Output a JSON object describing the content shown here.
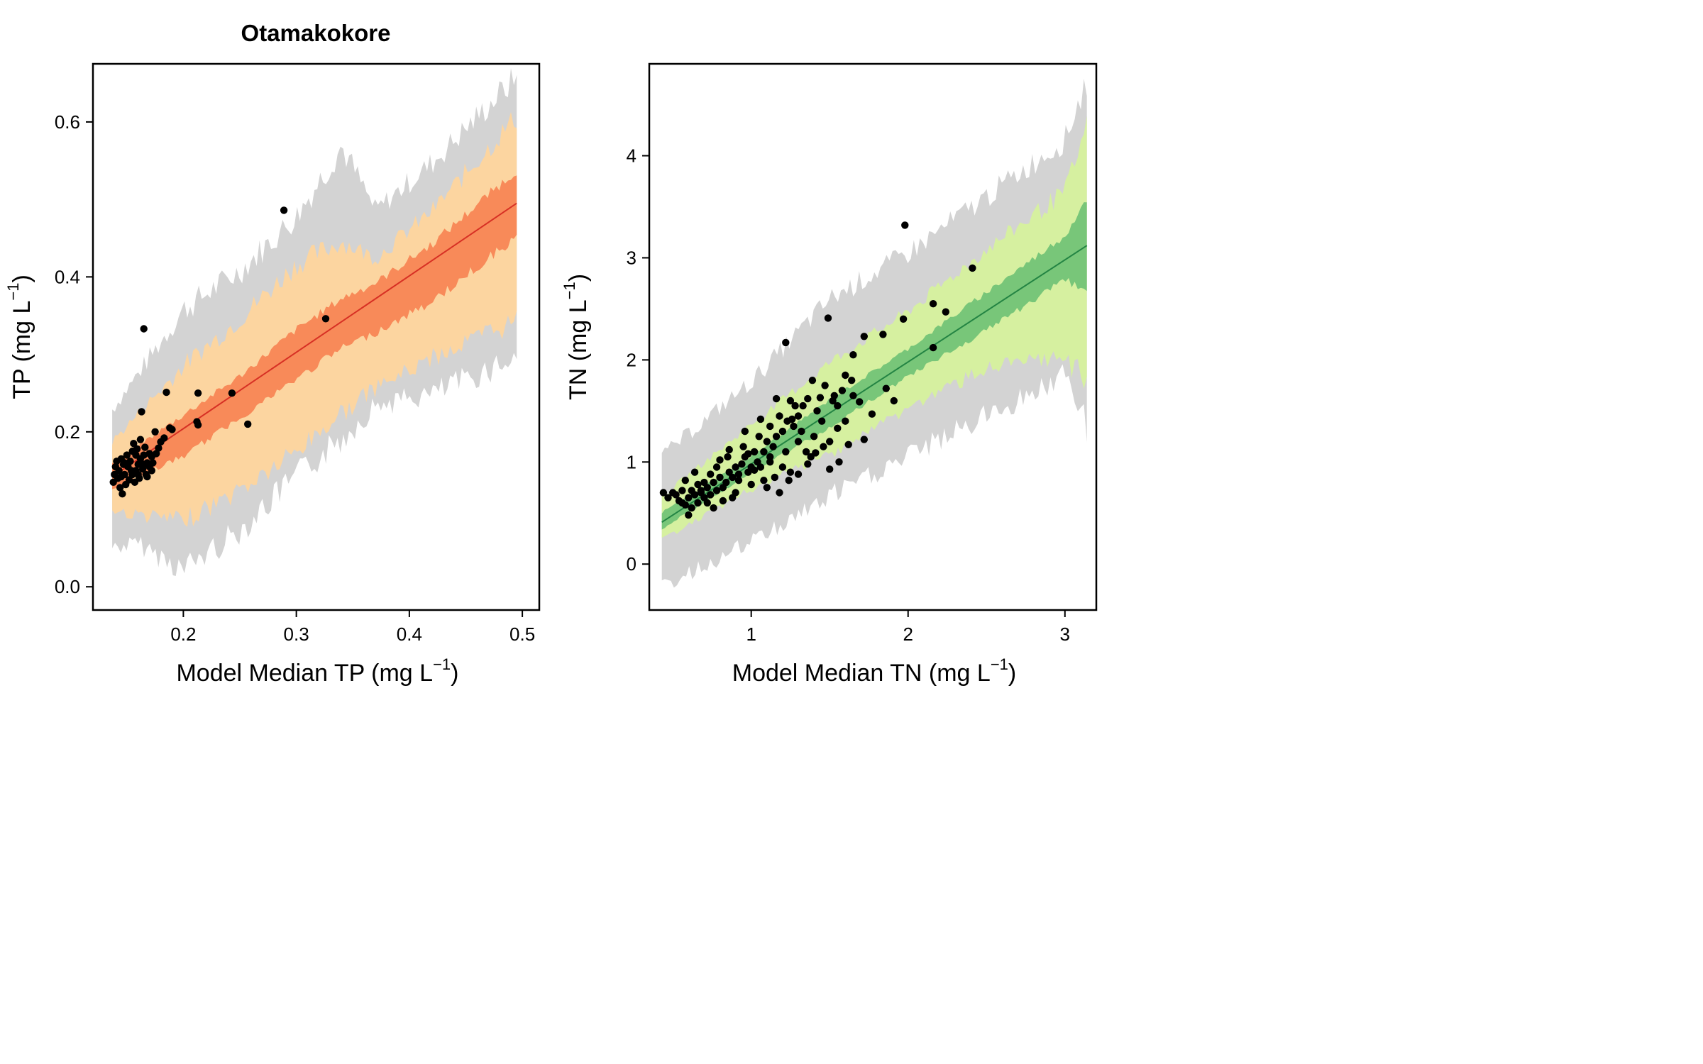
{
  "figure_title": "Otamakokore",
  "chart_data": [
    {
      "type": "scatter",
      "title": "Otamakokore",
      "xlabel": "Model Median TP",
      "ylabel": "TP",
      "unit": {
        "base": "(mg L",
        "sup": "−1",
        "close": ")"
      },
      "xlim": [
        0.12,
        0.515
      ],
      "ylim": [
        -0.03,
        0.675
      ],
      "xticks": [
        "0.2",
        "0.3",
        "0.4",
        "0.5"
      ],
      "xtick_values": [
        0.2,
        0.3,
        0.4,
        0.5
      ],
      "yticks": [
        "0.0",
        "0.2",
        "0.4",
        "0.6"
      ],
      "ytick_values": [
        0.0,
        0.2,
        0.4,
        0.6
      ],
      "colors": {
        "outer": "#d3d3d3",
        "mid": "#fcd5a0",
        "inner": "#f88a59",
        "line": "#d73024",
        "points": "#000000"
      },
      "line": {
        "x": [
          0.137,
          0.495
        ],
        "y": [
          0.142,
          0.495
        ]
      },
      "band_outer": {
        "x": [
          0.137,
          0.16,
          0.2,
          0.25,
          0.3,
          0.34,
          0.37,
          0.42,
          0.495
        ],
        "upper": [
          0.225,
          0.27,
          0.35,
          0.4,
          0.47,
          0.56,
          0.48,
          0.54,
          0.65
        ],
        "lower": [
          0.055,
          0.06,
          0.03,
          0.08,
          0.15,
          0.2,
          0.24,
          0.255,
          0.305
        ]
      },
      "band_mid": {
        "x": [
          0.137,
          0.2,
          0.25,
          0.3,
          0.34,
          0.37,
          0.42,
          0.495
        ],
        "upper": [
          0.185,
          0.28,
          0.34,
          0.41,
          0.44,
          0.42,
          0.48,
          0.6
        ],
        "lower": [
          0.1,
          0.09,
          0.13,
          0.18,
          0.23,
          0.26,
          0.3,
          0.35
        ]
      },
      "band_inner": {
        "x": [
          0.137,
          0.2,
          0.25,
          0.3,
          0.34,
          0.37,
          0.42,
          0.495
        ],
        "upper": [
          0.158,
          0.22,
          0.27,
          0.33,
          0.37,
          0.39,
          0.44,
          0.535
        ],
        "lower": [
          0.128,
          0.17,
          0.22,
          0.27,
          0.31,
          0.33,
          0.37,
          0.455
        ]
      },
      "points": [
        [
          0.165,
          0.333
        ],
        [
          0.289,
          0.486
        ],
        [
          0.326,
          0.346
        ],
        [
          0.185,
          0.251
        ],
        [
          0.213,
          0.25
        ],
        [
          0.243,
          0.25
        ],
        [
          0.257,
          0.21
        ],
        [
          0.212,
          0.213
        ],
        [
          0.213,
          0.209
        ],
        [
          0.19,
          0.203
        ],
        [
          0.188,
          0.205
        ],
        [
          0.163,
          0.226
        ],
        [
          0.175,
          0.2
        ],
        [
          0.183,
          0.192
        ],
        [
          0.18,
          0.187
        ],
        [
          0.178,
          0.179
        ],
        [
          0.176,
          0.172
        ],
        [
          0.172,
          0.168
        ],
        [
          0.17,
          0.172
        ],
        [
          0.168,
          0.16
        ],
        [
          0.165,
          0.17
        ],
        [
          0.162,
          0.165
        ],
        [
          0.16,
          0.158
        ],
        [
          0.158,
          0.17
        ],
        [
          0.156,
          0.185
        ],
        [
          0.155,
          0.175
        ],
        [
          0.153,
          0.162
        ],
        [
          0.151,
          0.155
        ],
        [
          0.15,
          0.17
        ],
        [
          0.148,
          0.145
        ],
        [
          0.147,
          0.158
        ],
        [
          0.145,
          0.165
        ],
        [
          0.143,
          0.15
        ],
        [
          0.142,
          0.14
        ],
        [
          0.14,
          0.155
        ],
        [
          0.139,
          0.145
        ],
        [
          0.138,
          0.135
        ],
        [
          0.144,
          0.128
        ],
        [
          0.146,
          0.12
        ],
        [
          0.149,
          0.132
        ],
        [
          0.152,
          0.138
        ],
        [
          0.155,
          0.145
        ],
        [
          0.158,
          0.15
        ],
        [
          0.161,
          0.14
        ],
        [
          0.164,
          0.152
        ],
        [
          0.167,
          0.145
        ],
        [
          0.17,
          0.155
        ],
        [
          0.173,
          0.16
        ],
        [
          0.159,
          0.178
        ],
        [
          0.162,
          0.19
        ],
        [
          0.166,
          0.18
        ],
        [
          0.157,
          0.135
        ],
        [
          0.154,
          0.15
        ],
        [
          0.148,
          0.16
        ],
        [
          0.141,
          0.162
        ],
        [
          0.145,
          0.142
        ],
        [
          0.168,
          0.142
        ],
        [
          0.172,
          0.15
        ],
        [
          0.165,
          0.158
        ],
        [
          0.16,
          0.145
        ]
      ]
    },
    {
      "type": "scatter",
      "title": "",
      "xlabel": "Model Median TN",
      "ylabel": "TN",
      "unit": {
        "base": "(mg L",
        "sup": "−1",
        "close": ")"
      },
      "xlim": [
        0.35,
        3.2
      ],
      "ylim": [
        -0.45,
        4.9
      ],
      "xticks": [
        "1",
        "2",
        "3"
      ],
      "xtick_values": [
        1,
        2,
        3
      ],
      "yticks": [
        "0",
        "1",
        "2",
        "3",
        "4"
      ],
      "ytick_values": [
        0,
        1,
        2,
        3,
        4
      ],
      "colors": {
        "outer": "#d3d3d3",
        "mid": "#d6f0a0",
        "inner": "#78c679",
        "line": "#238443",
        "points": "#000000"
      },
      "line": {
        "x": [
          0.43,
          3.14
        ],
        "y": [
          0.41,
          3.12
        ]
      },
      "band_outer": {
        "x": [
          0.43,
          1.0,
          1.5,
          2.0,
          2.5,
          3.0,
          3.14
        ],
        "upper": [
          1.03,
          1.75,
          2.55,
          3.0,
          3.55,
          4.1,
          4.68
        ],
        "lower": [
          -0.2,
          0.25,
          0.7,
          1.1,
          1.5,
          1.9,
          1.42
        ]
      },
      "band_mid": {
        "x": [
          0.43,
          1.0,
          1.5,
          2.0,
          2.5,
          3.0,
          3.14
        ],
        "upper": [
          0.65,
          1.35,
          1.95,
          2.45,
          3.05,
          3.6,
          4.2
        ],
        "lower": [
          0.25,
          0.75,
          1.1,
          1.55,
          1.95,
          2.05,
          1.87
        ]
      },
      "band_inner": {
        "x": [
          0.43,
          1.0,
          1.5,
          2.0,
          2.5,
          3.0,
          3.14
        ],
        "upper": [
          0.5,
          1.05,
          1.6,
          2.1,
          2.65,
          3.2,
          3.57
        ],
        "lower": [
          0.35,
          0.9,
          1.35,
          1.85,
          2.3,
          2.8,
          2.72
        ]
      },
      "points": [
        [
          1.98,
          3.32
        ],
        [
          2.41,
          2.9
        ],
        [
          1.49,
          2.41
        ],
        [
          2.16,
          2.55
        ],
        [
          2.24,
          2.47
        ],
        [
          1.97,
          2.4
        ],
        [
          1.22,
          2.17
        ],
        [
          2.16,
          2.12
        ],
        [
          1.72,
          2.23
        ],
        [
          1.84,
          2.25
        ],
        [
          1.65,
          2.05
        ],
        [
          1.91,
          1.6
        ],
        [
          1.86,
          1.72
        ],
        [
          1.77,
          1.47
        ],
        [
          1.69,
          1.59
        ],
        [
          1.72,
          1.22
        ],
        [
          1.62,
          1.17
        ],
        [
          1.55,
          1.33
        ],
        [
          1.5,
          0.93
        ],
        [
          1.41,
          1.09
        ],
        [
          1.6,
          1.85
        ],
        [
          1.64,
          1.8
        ],
        [
          1.58,
          1.7
        ],
        [
          1.53,
          1.65
        ],
        [
          1.47,
          1.75
        ],
        [
          1.44,
          1.63
        ],
        [
          1.39,
          1.8
        ],
        [
          1.36,
          1.62
        ],
        [
          1.33,
          1.55
        ],
        [
          1.3,
          1.45
        ],
        [
          1.27,
          1.35
        ],
        [
          1.25,
          1.6
        ],
        [
          1.23,
          1.4
        ],
        [
          1.2,
          1.3
        ],
        [
          1.18,
          1.45
        ],
        [
          1.16,
          1.25
        ],
        [
          1.14,
          1.15
        ],
        [
          1.12,
          1.05
        ],
        [
          1.1,
          1.2
        ],
        [
          1.08,
          1.1
        ],
        [
          1.06,
          0.95
        ],
        [
          1.04,
          1.0
        ],
        [
          1.02,
          1.1
        ],
        [
          1.0,
          0.95
        ],
        [
          0.98,
          0.9
        ],
        [
          0.96,
          1.05
        ],
        [
          0.94,
          0.98
        ],
        [
          0.92,
          0.88
        ],
        [
          0.9,
          0.95
        ],
        [
          0.88,
          0.85
        ],
        [
          0.86,
          0.9
        ],
        [
          0.84,
          0.8
        ],
        [
          0.82,
          0.75
        ],
        [
          0.8,
          0.85
        ],
        [
          0.78,
          0.72
        ],
        [
          0.76,
          0.8
        ],
        [
          0.74,
          0.68
        ],
        [
          0.72,
          0.75
        ],
        [
          0.7,
          0.65
        ],
        [
          0.68,
          0.72
        ],
        [
          0.66,
          0.6
        ],
        [
          0.64,
          0.68
        ],
        [
          0.62,
          0.55
        ],
        [
          0.6,
          0.65
        ],
        [
          0.58,
          0.58
        ],
        [
          0.56,
          0.6
        ],
        [
          0.54,
          0.62
        ],
        [
          0.52,
          0.68
        ],
        [
          0.5,
          0.7
        ],
        [
          0.47,
          0.65
        ],
        [
          0.44,
          0.7
        ],
        [
          0.6,
          0.48
        ],
        [
          0.64,
          0.9
        ],
        [
          0.7,
          0.8
        ],
        [
          0.76,
          0.55
        ],
        [
          0.85,
          1.05
        ],
        [
          0.9,
          0.7
        ],
        [
          0.95,
          1.15
        ],
        [
          1.0,
          0.78
        ],
        [
          1.05,
          1.25
        ],
        [
          1.1,
          0.75
        ],
        [
          1.15,
          0.85
        ],
        [
          1.2,
          0.95
        ],
        [
          1.25,
          0.9
        ],
        [
          1.3,
          1.2
        ],
        [
          1.35,
          1.1
        ],
        [
          1.4,
          1.25
        ],
        [
          1.45,
          1.4
        ],
        [
          1.5,
          1.2
        ],
        [
          1.55,
          1.55
        ],
        [
          1.6,
          1.4
        ],
        [
          1.65,
          1.65
        ],
        [
          1.38,
          1.05
        ],
        [
          1.28,
          1.55
        ],
        [
          1.18,
          0.7
        ],
        [
          1.08,
          0.82
        ],
        [
          0.98,
          1.08
        ],
        [
          0.88,
          0.65
        ],
        [
          0.78,
          0.95
        ],
        [
          0.68,
          0.7
        ],
        [
          0.58,
          0.82
        ],
        [
          0.62,
          0.72
        ],
        [
          0.72,
          0.6
        ],
        [
          0.82,
          0.62
        ],
        [
          0.92,
          0.82
        ],
        [
          1.02,
          0.92
        ],
        [
          1.12,
          1.0
        ],
        [
          1.22,
          1.1
        ],
        [
          1.32,
          1.3
        ],
        [
          1.42,
          1.5
        ],
        [
          1.52,
          1.6
        ],
        [
          1.12,
          1.35
        ],
        [
          1.06,
          1.42
        ],
        [
          0.96,
          1.3
        ],
        [
          1.16,
          1.62
        ],
        [
          1.26,
          1.42
        ],
        [
          1.46,
          1.15
        ],
        [
          1.56,
          1.0
        ],
        [
          1.36,
          0.98
        ],
        [
          1.24,
          0.82
        ],
        [
          1.3,
          0.88
        ],
        [
          0.86,
          1.12
        ],
        [
          0.8,
          1.02
        ],
        [
          0.74,
          0.88
        ],
        [
          0.66,
          0.78
        ],
        [
          0.56,
          0.72
        ]
      ]
    }
  ]
}
